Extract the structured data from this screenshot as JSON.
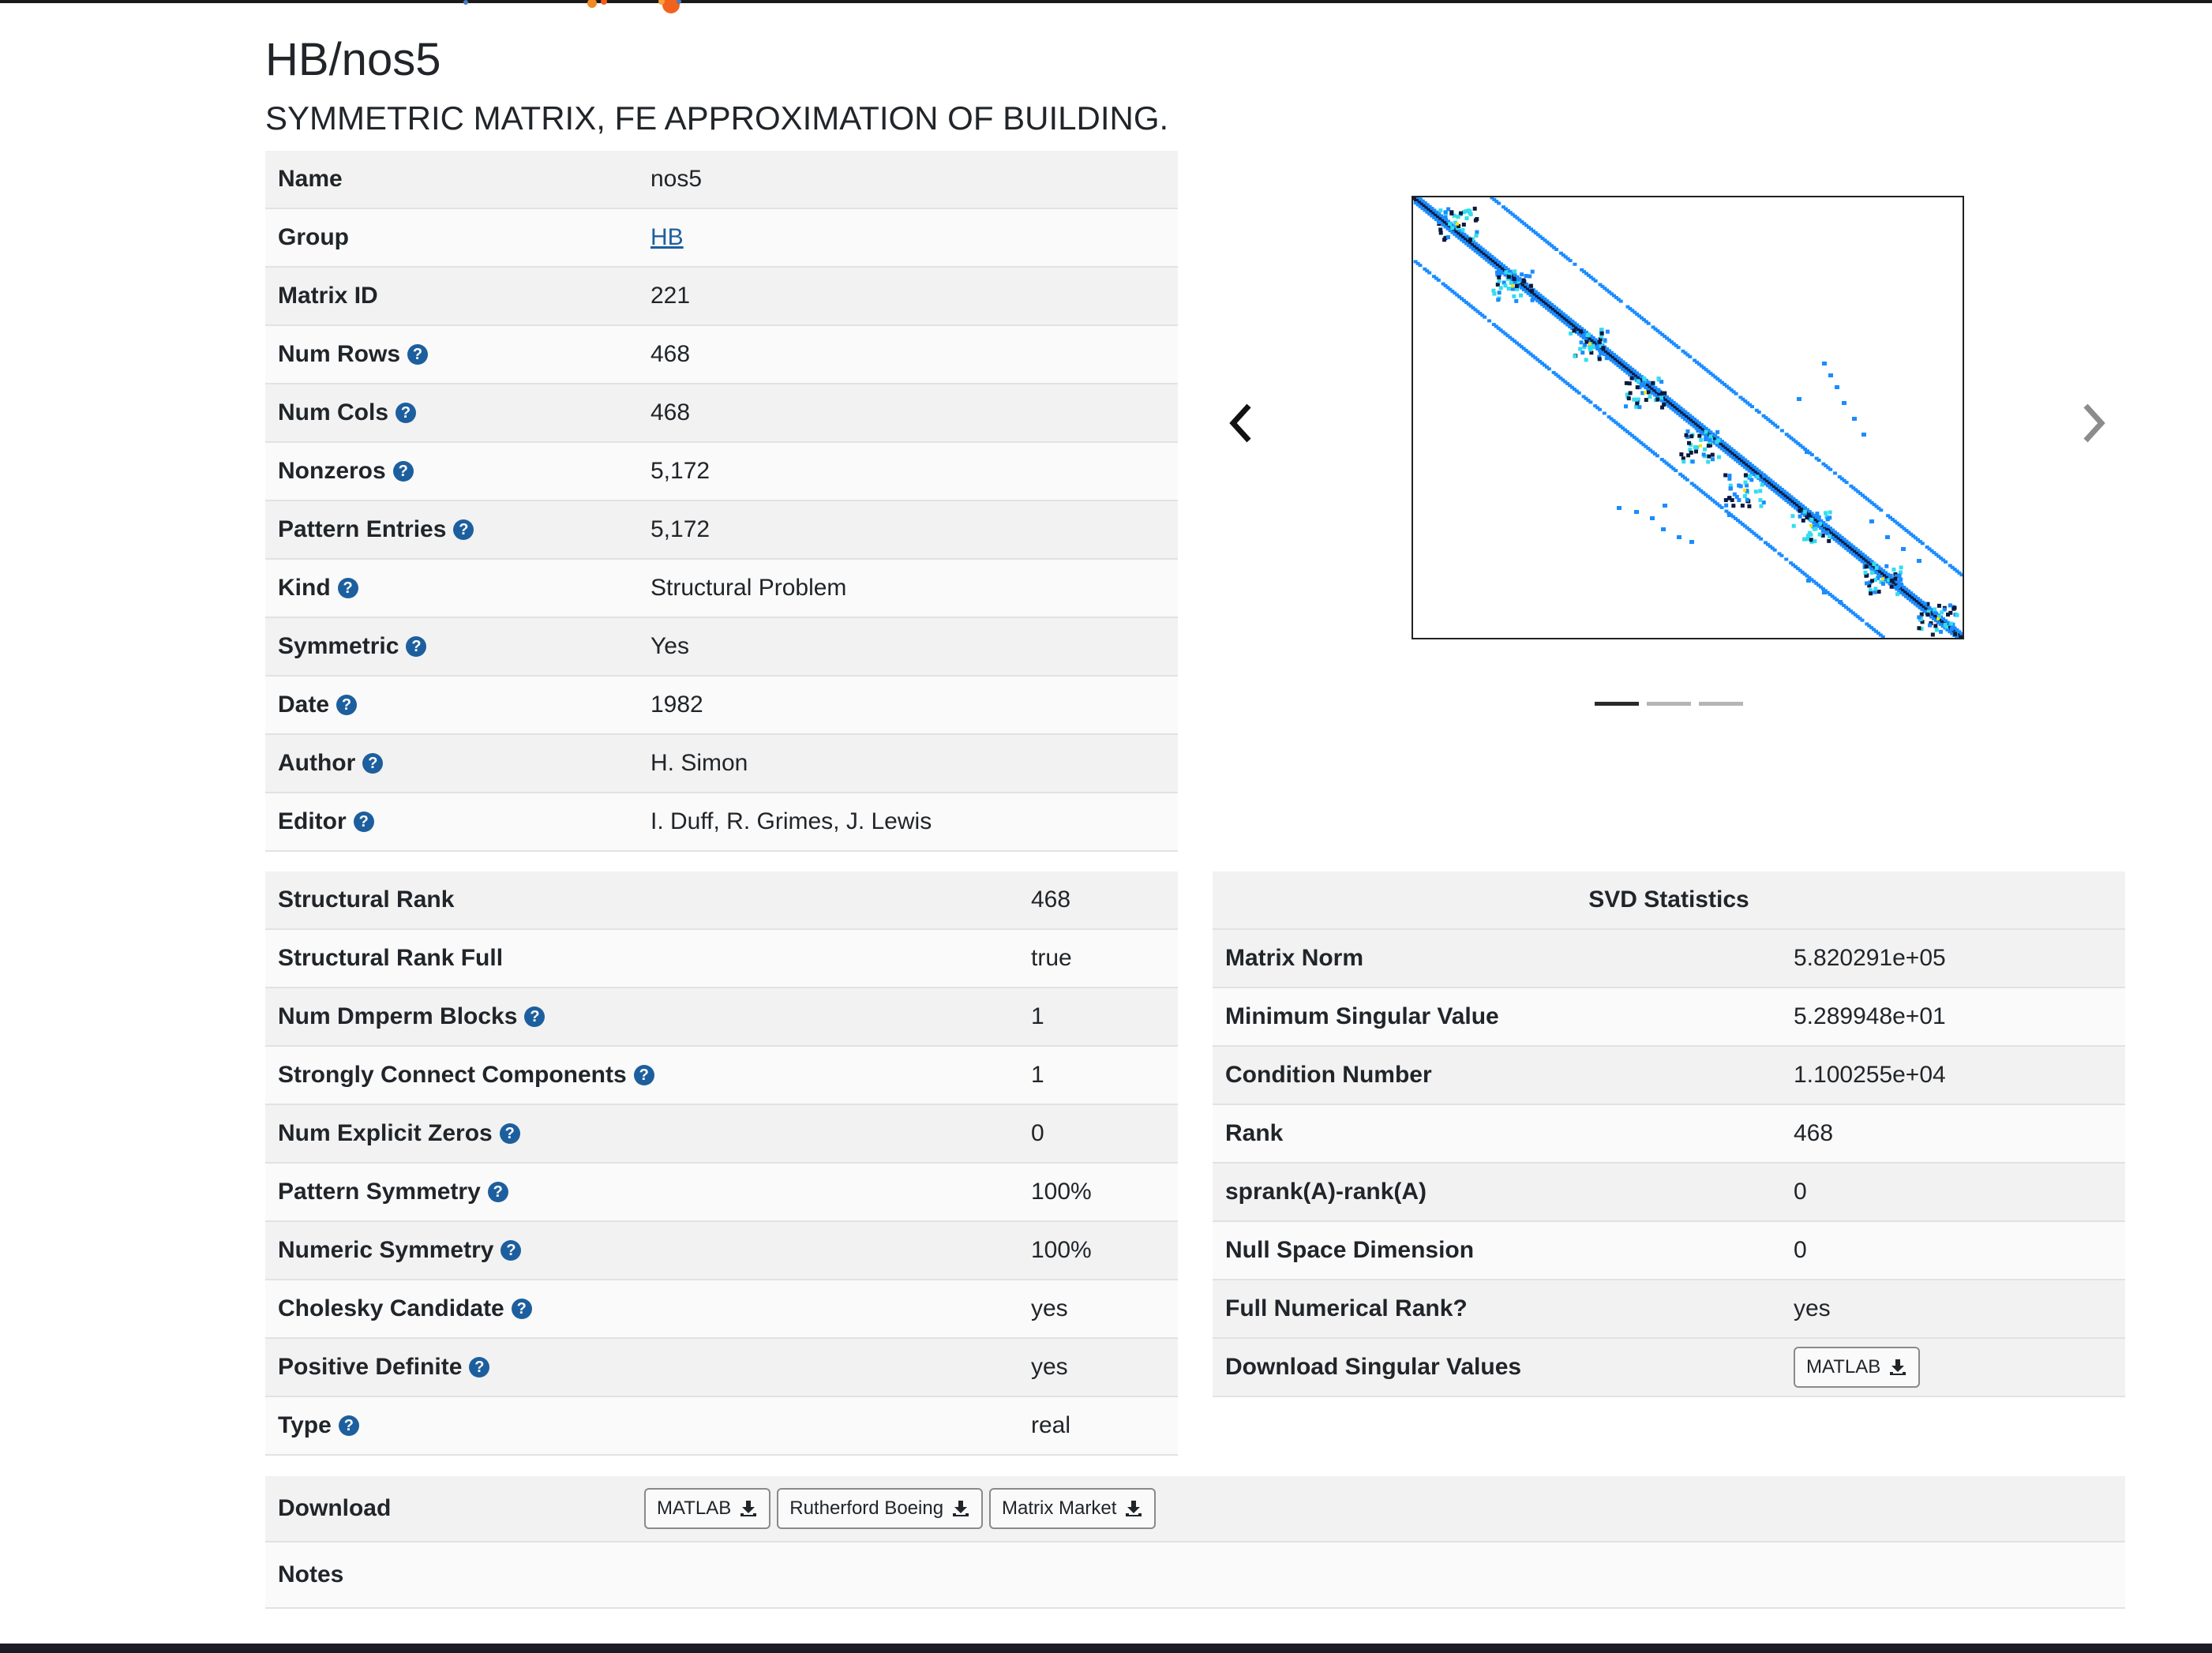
{
  "title": "HB/nos5",
  "subtitle": "SYMMETRIC MATRIX, FE APPROXIMATION OF BUILDING.",
  "help_glyph": "?",
  "info": [
    {
      "label": "Name",
      "value": "nos5",
      "help": false,
      "link": false
    },
    {
      "label": "Group",
      "value": "HB",
      "help": false,
      "link": true
    },
    {
      "label": "Matrix ID",
      "value": "221",
      "help": false,
      "link": false
    },
    {
      "label": "Num Rows",
      "value": "468",
      "help": true,
      "link": false
    },
    {
      "label": "Num Cols",
      "value": "468",
      "help": true,
      "link": false
    },
    {
      "label": "Nonzeros",
      "value": "5,172",
      "help": true,
      "link": false
    },
    {
      "label": "Pattern Entries",
      "value": "5,172",
      "help": true,
      "link": false
    },
    {
      "label": "Kind",
      "value": "Structural Problem",
      "help": true,
      "link": false
    },
    {
      "label": "Symmetric",
      "value": "Yes",
      "help": true,
      "link": false
    },
    {
      "label": "Date",
      "value": "1982",
      "help": true,
      "link": false
    },
    {
      "label": "Author",
      "value": "H. Simon",
      "help": true,
      "link": false
    },
    {
      "label": "Editor",
      "value": "I. Duff, R. Grimes, J. Lewis",
      "help": true,
      "link": false
    }
  ],
  "structure": [
    {
      "label": "Structural Rank",
      "value": "468",
      "help": false
    },
    {
      "label": "Structural Rank Full",
      "value": "true",
      "help": false
    },
    {
      "label": "Num Dmperm Blocks",
      "value": "1",
      "help": true
    },
    {
      "label": "Strongly Connect Components",
      "value": "1",
      "help": true
    },
    {
      "label": "Num Explicit Zeros",
      "value": "0",
      "help": true
    },
    {
      "label": "Pattern Symmetry",
      "value": "100%",
      "help": true
    },
    {
      "label": "Numeric Symmetry",
      "value": "100%",
      "help": true
    },
    {
      "label": "Cholesky Candidate",
      "value": "yes",
      "help": true
    },
    {
      "label": "Positive Definite",
      "value": "yes",
      "help": true
    },
    {
      "label": "Type",
      "value": "real",
      "help": true
    }
  ],
  "svd": {
    "heading": "SVD Statistics",
    "rows": [
      {
        "label": "Matrix Norm",
        "value": "5.820291e+05"
      },
      {
        "label": "Minimum Singular Value",
        "value": "5.289948e+01"
      },
      {
        "label": "Condition Number",
        "value": "1.100255e+04"
      },
      {
        "label": "Rank",
        "value": "468"
      },
      {
        "label": "sprank(A)-rank(A)",
        "value": "0"
      },
      {
        "label": "Null Space Dimension",
        "value": "0"
      },
      {
        "label": "Full Numerical Rank?",
        "value": "yes"
      }
    ],
    "download_label": "Download Singular Values",
    "download_button": "MATLAB"
  },
  "download": {
    "label": "Download",
    "buttons": [
      "MATLAB",
      "Rutherford Boeing",
      "Matrix Market"
    ]
  },
  "notes": {
    "label": "Notes"
  },
  "carousel": {
    "slide_count": 3,
    "active_index": 0,
    "colors": {
      "accent": "#1d5f9e",
      "light_blue": "#1a8cff",
      "cyan": "#33ddee",
      "dark": "#0b1a3d",
      "yellow": "#f2e400"
    }
  },
  "icons": {
    "help": "question-circle-icon",
    "download": "download-icon",
    "prev": "chevron-left-icon",
    "next": "chevron-right-icon"
  }
}
